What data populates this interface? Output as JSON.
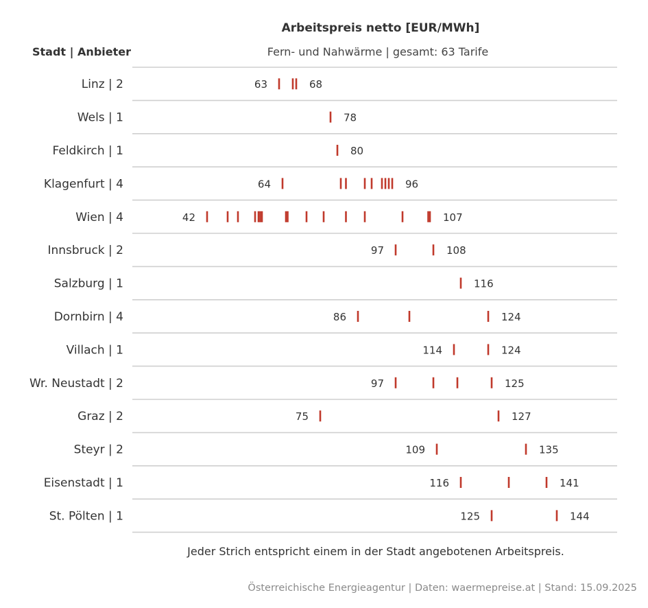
{
  "header": {
    "title": "Arbeitspreis netto [EUR/MWh]",
    "subtitle": "Fern- und Nahwärme | gesamt: 63 Tarife",
    "row_header": "Stadt | Anbieter"
  },
  "caption": "Jeder Strich entspricht einem in der Stadt angebotenen Arbeitspreis.",
  "source": "Österreichische Energieagentur | Daten: waermepreise.at | Stand: 15.09.2025",
  "colors": {
    "mark": "#c0392b",
    "gridline": "#cfcfcf",
    "text": "#333333",
    "source": "#8a8a8a"
  },
  "chart_data": {
    "type": "strip",
    "title": "Arbeitspreis netto [EUR/MWh]",
    "subtitle": "Fern- und Nahwärme | gesamt: 63 Tarife",
    "xlim": [
      35,
      155
    ],
    "rows": [
      {
        "label": "Linz | 2",
        "values": [
          63,
          67,
          68
        ],
        "min_label": "63",
        "max_label": "68"
      },
      {
        "label": "Wels | 1",
        "values": [
          78
        ],
        "min_label": "",
        "max_label": "78"
      },
      {
        "label": "Feldkirch | 1",
        "values": [
          80
        ],
        "min_label": "",
        "max_label": "80"
      },
      {
        "label": "Klagenfurt | 4",
        "values": [
          64,
          81,
          82.5,
          88,
          90,
          93,
          94,
          95,
          96
        ],
        "min_label": "64",
        "max_label": "96"
      },
      {
        "label": "Wien | 4",
        "values": [
          42,
          48,
          51,
          56,
          57,
          57.5,
          58,
          65,
          65.5,
          71,
          76,
          82.5,
          88,
          99,
          106.5,
          107
        ],
        "min_label": "42",
        "max_label": "107"
      },
      {
        "label": "Innsbruck | 2",
        "values": [
          97,
          108
        ],
        "min_label": "97",
        "max_label": "108"
      },
      {
        "label": "Salzburg | 1",
        "values": [
          116
        ],
        "min_label": "",
        "max_label": "116"
      },
      {
        "label": "Dornbirn | 4",
        "values": [
          86,
          101,
          124
        ],
        "min_label": "86",
        "max_label": "124"
      },
      {
        "label": "Villach | 1",
        "values": [
          114,
          124
        ],
        "min_label": "114",
        "max_label": "124"
      },
      {
        "label": "Wr. Neustadt | 2",
        "values": [
          97,
          108,
          115,
          125
        ],
        "min_label": "97",
        "max_label": "125"
      },
      {
        "label": "Graz | 2",
        "values": [
          75,
          127
        ],
        "min_label": "75",
        "max_label": "127"
      },
      {
        "label": "Steyr | 2",
        "values": [
          109,
          135
        ],
        "min_label": "109",
        "max_label": "135"
      },
      {
        "label": "Eisenstadt | 1",
        "values": [
          116,
          130,
          141
        ],
        "min_label": "116",
        "max_label": "141"
      },
      {
        "label": "St. Pölten | 1",
        "values": [
          125,
          144
        ],
        "min_label": "125",
        "max_label": "144"
      }
    ]
  }
}
